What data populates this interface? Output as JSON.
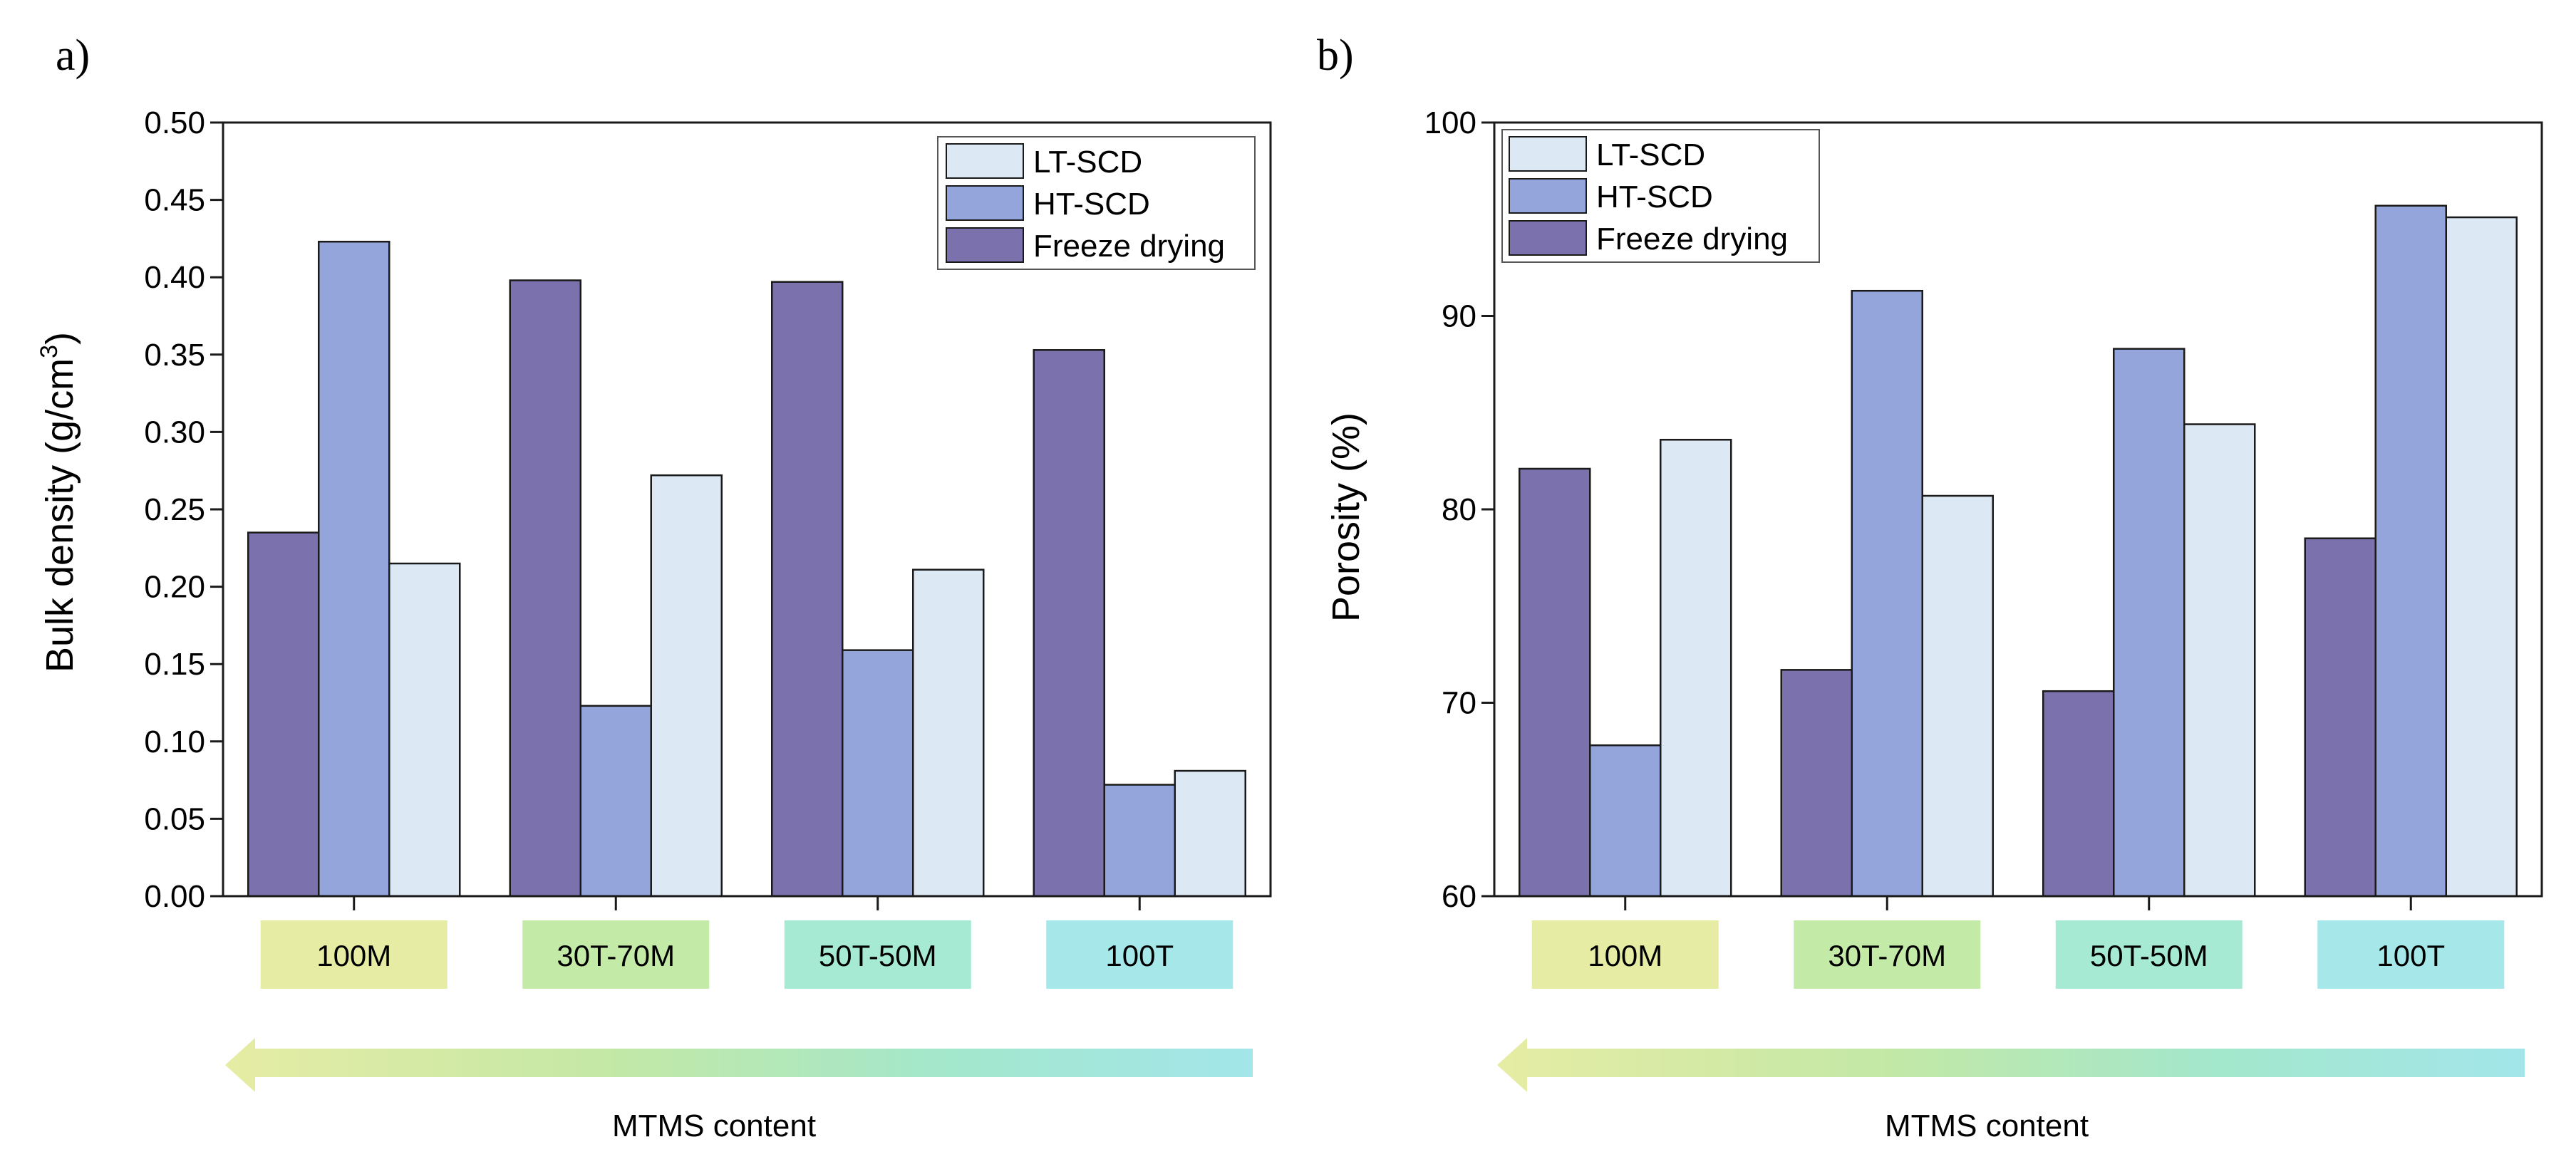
{
  "colors": {
    "freeze_drying": "#7b72ad",
    "ht_scd": "#94a5dc",
    "lt_scd": "#dde8f5",
    "bar_stroke": "#1a1a1a"
  },
  "arrow": {
    "label": "MTMS content",
    "gradient": [
      "#e6eca4",
      "#c3e8a6",
      "#a3e7cc",
      "#a3e6ea"
    ]
  },
  "chart_data": [
    {
      "panel": "a)",
      "type": "bar",
      "title": "",
      "xlabel": "",
      "ylabel": "Bulk density (g/cm",
      "ylabel_superscript": "3",
      "ylabel_end": ")",
      "ylim": [
        0,
        0.5
      ],
      "yticks": [
        "0.00",
        "0.05",
        "0.10",
        "0.15",
        "0.20",
        "0.25",
        "0.30",
        "0.35",
        "0.40",
        "0.45",
        "0.50"
      ],
      "legend_position": "top-right",
      "legend": [
        "LT-SCD",
        "HT-SCD",
        "Freeze drying"
      ],
      "categories": [
        {
          "label": "100M",
          "color": "#e6eca4"
        },
        {
          "label": "30T-70M",
          "color": "#c4eaa8"
        },
        {
          "label": "50T-50M",
          "color": "#a7ead3"
        },
        {
          "label": "100T",
          "color": "#a6e8ea"
        }
      ],
      "series": [
        {
          "name": "Freeze drying",
          "color_key": "freeze_drying",
          "values": [
            0.235,
            0.398,
            0.397,
            0.353
          ]
        },
        {
          "name": "HT-SCD",
          "color_key": "ht_scd",
          "values": [
            0.423,
            0.123,
            0.159,
            0.072
          ]
        },
        {
          "name": "LT-SCD",
          "color_key": "lt_scd",
          "values": [
            0.215,
            0.272,
            0.211,
            0.081
          ]
        }
      ]
    },
    {
      "panel": "b)",
      "type": "bar",
      "title": "",
      "xlabel": "",
      "ylabel": "Porosity (%)",
      "ylabel_superscript": "",
      "ylabel_end": "",
      "ylim": [
        60,
        100
      ],
      "yticks": [
        "60",
        "70",
        "80",
        "90",
        "100"
      ],
      "legend_position": "top-left",
      "legend": [
        "LT-SCD",
        "HT-SCD",
        "Freeze drying"
      ],
      "categories": [
        {
          "label": "100M",
          "color": "#e6eca4"
        },
        {
          "label": "30T-70M",
          "color": "#c4eaa8"
        },
        {
          "label": "50T-50M",
          "color": "#a7ead3"
        },
        {
          "label": "100T",
          "color": "#a6e8ea"
        }
      ],
      "series": [
        {
          "name": "Freeze drying",
          "color_key": "freeze_drying",
          "values": [
            82.1,
            71.7,
            70.6,
            78.5
          ]
        },
        {
          "name": "HT-SCD",
          "color_key": "ht_scd",
          "values": [
            67.8,
            91.3,
            88.3,
            95.7
          ]
        },
        {
          "name": "LT-SCD",
          "color_key": "lt_scd",
          "values": [
            83.6,
            80.7,
            84.4,
            95.1
          ]
        }
      ]
    }
  ]
}
